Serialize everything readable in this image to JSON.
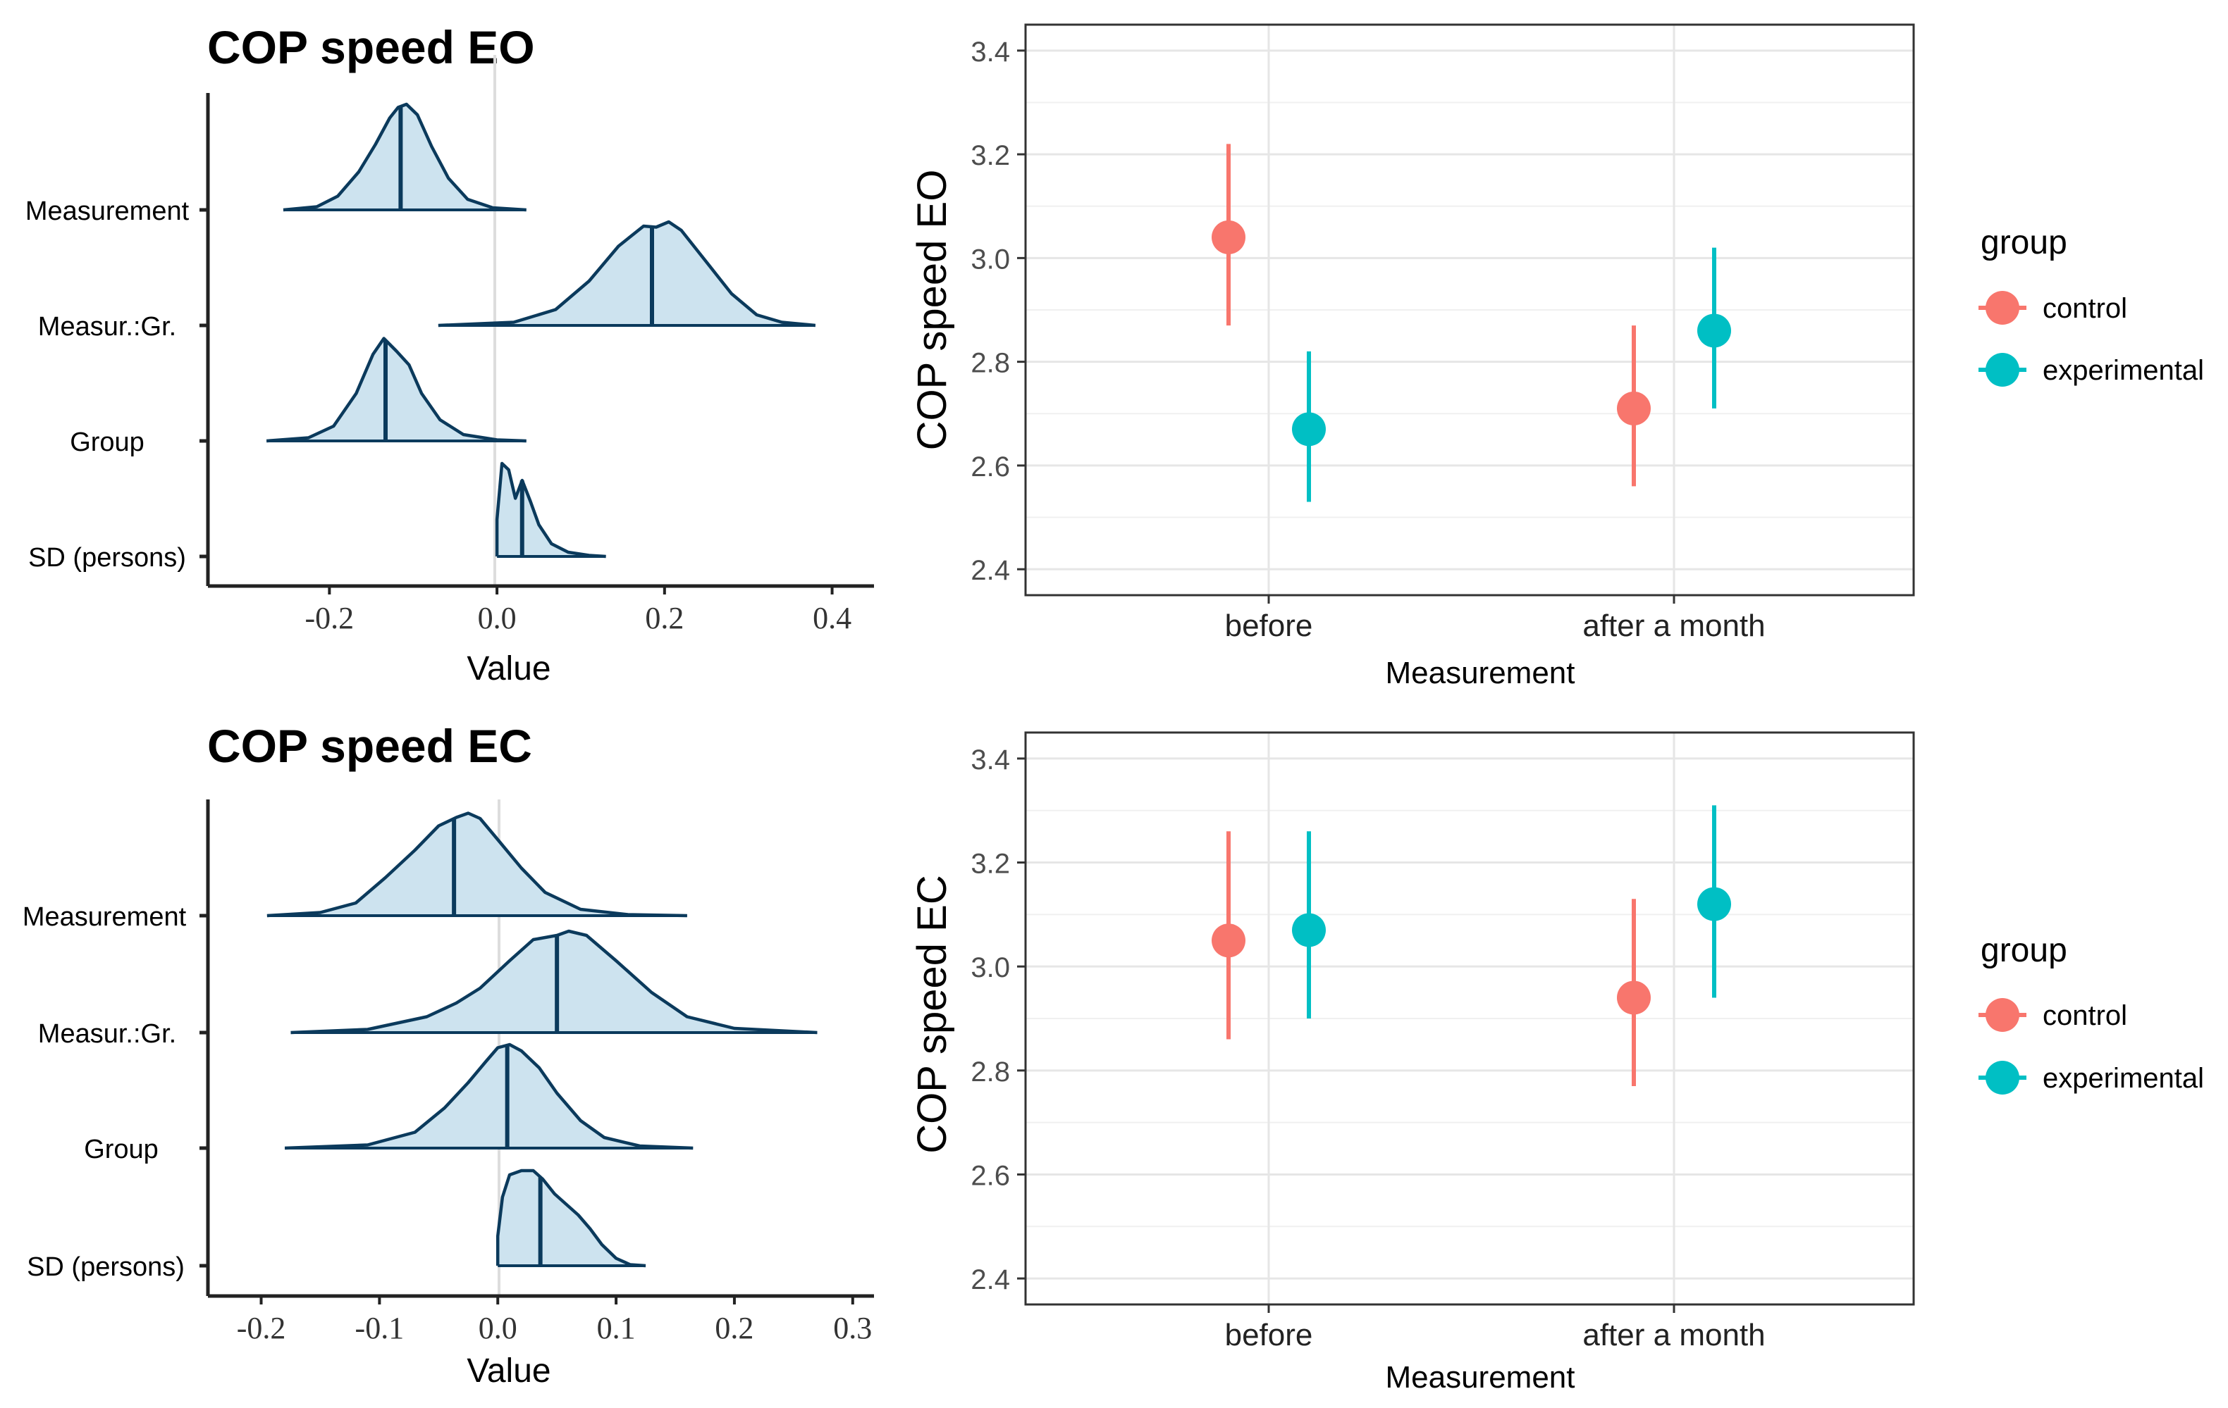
{
  "chart_data": [
    {
      "id": "eo_density",
      "type": "density",
      "title": "COP speed EO",
      "xlabel": "Value",
      "xlim": [
        -0.345,
        0.45
      ],
      "xticks": [
        -0.2,
        0.0,
        0.2,
        0.4
      ],
      "xtick_labels": [
        "-0.2",
        "0.0",
        "0.2",
        "0.4"
      ],
      "rows": [
        {
          "label": "Measurement",
          "median": -0.115,
          "density": [
            [
              -0.255,
              0
            ],
            [
              -0.215,
              0.03
            ],
            [
              -0.19,
              0.13
            ],
            [
              -0.165,
              0.36
            ],
            [
              -0.145,
              0.62
            ],
            [
              -0.128,
              0.87
            ],
            [
              -0.118,
              0.97
            ],
            [
              -0.108,
              1.0
            ],
            [
              -0.095,
              0.9
            ],
            [
              -0.078,
              0.6
            ],
            [
              -0.058,
              0.3
            ],
            [
              -0.035,
              0.1
            ],
            [
              -0.005,
              0.02
            ],
            [
              0.035,
              0
            ]
          ]
        },
        {
          "label": "Measur.:Gr.",
          "median": 0.185,
          "density": [
            [
              -0.07,
              0
            ],
            [
              0.02,
              0.03
            ],
            [
              0.07,
              0.15
            ],
            [
              0.11,
              0.42
            ],
            [
              0.145,
              0.75
            ],
            [
              0.175,
              0.94
            ],
            [
              0.19,
              0.93
            ],
            [
              0.205,
              0.98
            ],
            [
              0.22,
              0.9
            ],
            [
              0.25,
              0.6
            ],
            [
              0.28,
              0.3
            ],
            [
              0.31,
              0.1
            ],
            [
              0.34,
              0.03
            ],
            [
              0.38,
              0
            ]
          ]
        },
        {
          "label": "Group",
          "median": -0.133,
          "density": [
            [
              -0.275,
              0
            ],
            [
              -0.225,
              0.03
            ],
            [
              -0.195,
              0.14
            ],
            [
              -0.168,
              0.45
            ],
            [
              -0.148,
              0.82
            ],
            [
              -0.135,
              0.97
            ],
            [
              -0.12,
              0.85
            ],
            [
              -0.105,
              0.72
            ],
            [
              -0.09,
              0.45
            ],
            [
              -0.068,
              0.2
            ],
            [
              -0.04,
              0.06
            ],
            [
              0.0,
              0.01
            ],
            [
              0.035,
              0
            ]
          ]
        },
        {
          "label": "SD (persons)",
          "median": 0.03,
          "density": [
            [
              0.0,
              0.35
            ],
            [
              0.006,
              0.88
            ],
            [
              0.014,
              0.82
            ],
            [
              0.022,
              0.55
            ],
            [
              0.03,
              0.72
            ],
            [
              0.04,
              0.52
            ],
            [
              0.05,
              0.3
            ],
            [
              0.065,
              0.12
            ],
            [
              0.085,
              0.04
            ],
            [
              0.11,
              0.01
            ],
            [
              0.13,
              0
            ]
          ]
        }
      ]
    },
    {
      "id": "eo_points",
      "type": "pointrange",
      "ylabel": "COP speed EO",
      "xlabel": "Measurement",
      "categories": [
        "before",
        "after a month"
      ],
      "ylim": [
        2.35,
        3.45
      ],
      "yticks": [
        2.4,
        2.6,
        2.8,
        3.0,
        3.2,
        3.4
      ],
      "ytick_labels": [
        "2.4",
        "2.6",
        "2.8",
        "3.0",
        "3.2",
        "3.4"
      ],
      "legend_title": "group",
      "series": [
        {
          "name": "control",
          "color": "#F8766D",
          "values": [
            3.04,
            2.71
          ],
          "lower": [
            2.87,
            2.56
          ],
          "upper": [
            3.22,
            2.87
          ]
        },
        {
          "name": "experimental",
          "color": "#00BFC4",
          "values": [
            2.67,
            2.86
          ],
          "lower": [
            2.53,
            2.71
          ],
          "upper": [
            2.82,
            3.02
          ]
        }
      ]
    },
    {
      "id": "ec_density",
      "type": "density",
      "title": "COP speed EC",
      "xlabel": "Value",
      "xlim": [
        -0.245,
        0.318
      ],
      "xticks": [
        -0.2,
        -0.1,
        0.0,
        0.1,
        0.2,
        0.3
      ],
      "xtick_labels": [
        "-0.2",
        "-0.1",
        "0.0",
        "0.1",
        "0.2",
        "0.3"
      ],
      "rows": [
        {
          "label": "Measurement",
          "median": -0.037,
          "density": [
            [
              -0.195,
              0
            ],
            [
              -0.15,
              0.03
            ],
            [
              -0.12,
              0.12
            ],
            [
              -0.095,
              0.36
            ],
            [
              -0.07,
              0.62
            ],
            [
              -0.05,
              0.85
            ],
            [
              -0.035,
              0.93
            ],
            [
              -0.025,
              0.97
            ],
            [
              -0.015,
              0.92
            ],
            [
              0.0,
              0.72
            ],
            [
              0.02,
              0.45
            ],
            [
              0.04,
              0.22
            ],
            [
              0.07,
              0.06
            ],
            [
              0.11,
              0.01
            ],
            [
              0.16,
              0
            ]
          ]
        },
        {
          "label": "Measur.:Gr.",
          "median": 0.05,
          "density": [
            [
              -0.175,
              0
            ],
            [
              -0.11,
              0.03
            ],
            [
              -0.06,
              0.15
            ],
            [
              -0.035,
              0.28
            ],
            [
              -0.015,
              0.42
            ],
            [
              0.01,
              0.68
            ],
            [
              0.03,
              0.88
            ],
            [
              0.05,
              0.92
            ],
            [
              0.06,
              0.96
            ],
            [
              0.075,
              0.92
            ],
            [
              0.1,
              0.68
            ],
            [
              0.13,
              0.38
            ],
            [
              0.16,
              0.15
            ],
            [
              0.2,
              0.04
            ],
            [
              0.27,
              0
            ]
          ]
        },
        {
          "label": "Group",
          "median": 0.008,
          "density": [
            [
              -0.18,
              0
            ],
            [
              -0.11,
              0.03
            ],
            [
              -0.07,
              0.15
            ],
            [
              -0.045,
              0.38
            ],
            [
              -0.025,
              0.62
            ],
            [
              -0.01,
              0.82
            ],
            [
              0.0,
              0.95
            ],
            [
              0.01,
              0.98
            ],
            [
              0.02,
              0.92
            ],
            [
              0.035,
              0.76
            ],
            [
              0.05,
              0.52
            ],
            [
              0.07,
              0.26
            ],
            [
              0.09,
              0.1
            ],
            [
              0.12,
              0.02
            ],
            [
              0.165,
              0
            ]
          ]
        },
        {
          "label": "SD (persons)",
          "median": 0.036,
          "density": [
            [
              0.0,
              0.28
            ],
            [
              0.004,
              0.65
            ],
            [
              0.01,
              0.86
            ],
            [
              0.02,
              0.9
            ],
            [
              0.03,
              0.9
            ],
            [
              0.038,
              0.82
            ],
            [
              0.048,
              0.68
            ],
            [
              0.058,
              0.58
            ],
            [
              0.068,
              0.48
            ],
            [
              0.078,
              0.35
            ],
            [
              0.088,
              0.2
            ],
            [
              0.1,
              0.07
            ],
            [
              0.112,
              0.01
            ],
            [
              0.125,
              0
            ]
          ]
        }
      ]
    },
    {
      "id": "ec_points",
      "type": "pointrange",
      "ylabel": "COP speed EC",
      "xlabel": "Measurement",
      "categories": [
        "before",
        "after a month"
      ],
      "ylim": [
        2.35,
        3.45
      ],
      "yticks": [
        2.4,
        2.6,
        2.8,
        3.0,
        3.2,
        3.4
      ],
      "ytick_labels": [
        "2.4",
        "2.6",
        "2.8",
        "3.0",
        "3.2",
        "3.4"
      ],
      "legend_title": "group",
      "series": [
        {
          "name": "control",
          "color": "#F8766D",
          "values": [
            3.05,
            2.94
          ],
          "lower": [
            2.86,
            2.77
          ],
          "upper": [
            3.26,
            3.13
          ]
        },
        {
          "name": "experimental",
          "color": "#00BFC4",
          "values": [
            3.07,
            3.12
          ],
          "lower": [
            2.9,
            2.94
          ],
          "upper": [
            3.26,
            3.31
          ]
        }
      ]
    }
  ]
}
